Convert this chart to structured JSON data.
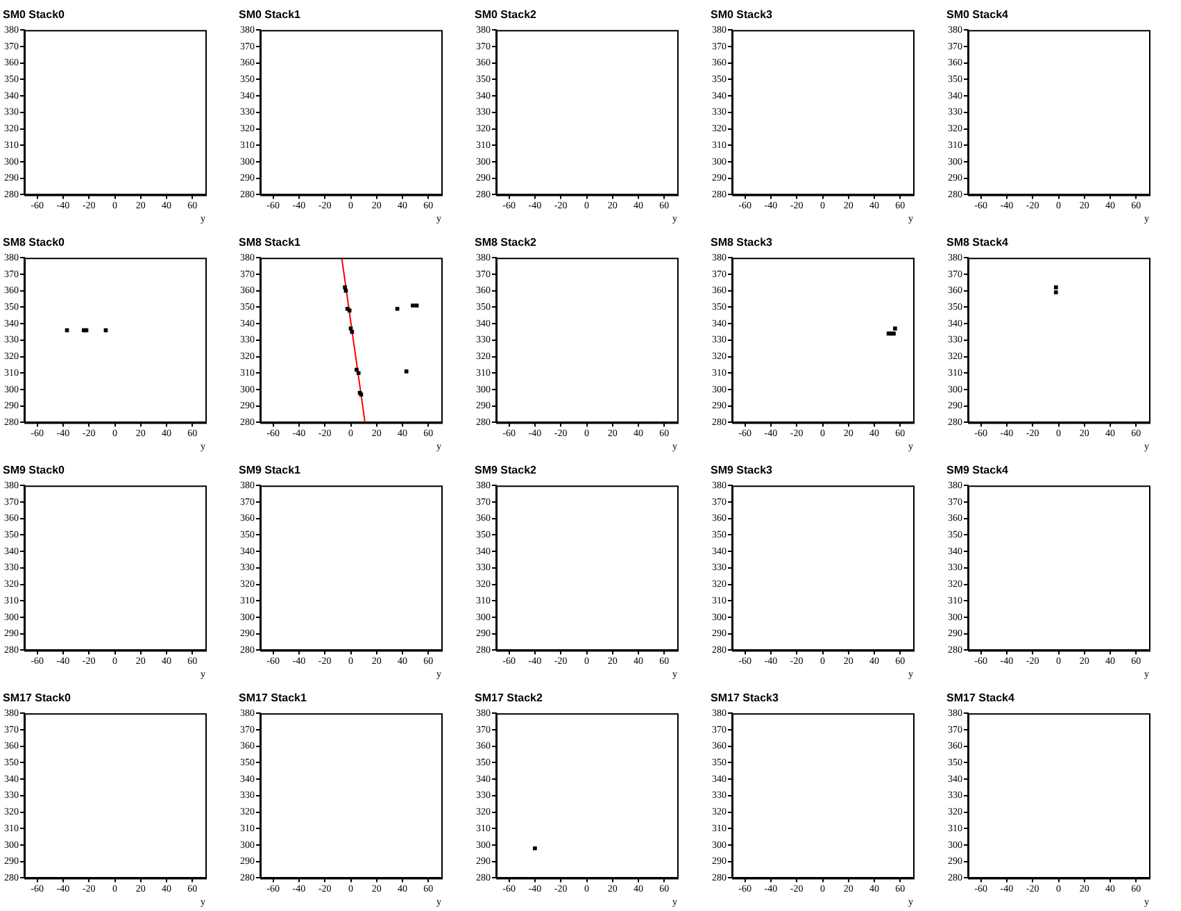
{
  "chart_data": [
    {
      "type": "scatter",
      "title": "SM0 Stack0",
      "xlabel": "y",
      "xlim": [
        -70,
        70
      ],
      "xticks": [
        -60,
        -40,
        -20,
        0,
        20,
        40,
        60
      ],
      "ylim": [
        280,
        380
      ],
      "yticks": [
        280,
        290,
        300,
        310,
        320,
        330,
        340,
        350,
        360,
        370,
        380
      ]
    },
    {
      "type": "scatter",
      "title": "SM0 Stack1",
      "xlabel": "y",
      "xlim": [
        -70,
        70
      ],
      "xticks": [
        -60,
        -40,
        -20,
        0,
        20,
        40,
        60
      ],
      "ylim": [
        280,
        380
      ],
      "yticks": [
        280,
        290,
        300,
        310,
        320,
        330,
        340,
        350,
        360,
        370,
        380
      ]
    },
    {
      "type": "scatter",
      "title": "SM0 Stack2",
      "xlabel": "y",
      "xlim": [
        -70,
        70
      ],
      "xticks": [
        -60,
        -40,
        -20,
        0,
        20,
        40,
        60
      ],
      "ylim": [
        280,
        380
      ],
      "yticks": [
        280,
        290,
        300,
        310,
        320,
        330,
        340,
        350,
        360,
        370,
        380
      ]
    },
    {
      "type": "scatter",
      "title": "SM0 Stack3",
      "xlabel": "y",
      "xlim": [
        -70,
        70
      ],
      "xticks": [
        -60,
        -40,
        -20,
        0,
        20,
        40,
        60
      ],
      "ylim": [
        280,
        380
      ],
      "yticks": [
        280,
        290,
        300,
        310,
        320,
        330,
        340,
        350,
        360,
        370,
        380
      ]
    },
    {
      "type": "scatter",
      "title": "SM0 Stack4",
      "xlabel": "y",
      "xlim": [
        -70,
        70
      ],
      "xticks": [
        -60,
        -40,
        -20,
        0,
        20,
        40,
        60
      ],
      "ylim": [
        280,
        380
      ],
      "yticks": [
        280,
        290,
        300,
        310,
        320,
        330,
        340,
        350,
        360,
        370,
        380
      ]
    },
    {
      "type": "scatter",
      "title": "SM8 Stack0",
      "xlabel": "y",
      "xlim": [
        -70,
        70
      ],
      "xticks": [
        -60,
        -40,
        -20,
        0,
        20,
        40,
        60
      ],
      "ylim": [
        280,
        380
      ],
      "yticks": [
        280,
        290,
        300,
        310,
        320,
        330,
        340,
        350,
        360,
        370,
        380
      ],
      "series": [
        {
          "color": "#000000",
          "marker": "square",
          "x": [
            -37,
            -24,
            -22,
            -7
          ],
          "values": [
            336,
            336,
            336,
            336
          ]
        }
      ]
    },
    {
      "type": "scatter",
      "title": "SM8 Stack1",
      "xlabel": "y",
      "xlim": [
        -70,
        70
      ],
      "xticks": [
        -60,
        -40,
        -20,
        0,
        20,
        40,
        60
      ],
      "ylim": [
        280,
        380
      ],
      "yticks": [
        280,
        290,
        300,
        310,
        320,
        330,
        340,
        350,
        360,
        370,
        380
      ],
      "series": [
        {
          "color": "#000000",
          "marker": "square",
          "x": [
            -4.5,
            -3.8,
            -2.6,
            -1,
            0,
            1,
            4.5,
            6,
            7,
            8,
            36,
            48,
            51,
            43
          ],
          "values": [
            362,
            360,
            349,
            348,
            337,
            335,
            312,
            310,
            298,
            297,
            349,
            351,
            351,
            311
          ]
        },
        {
          "type": "line",
          "color": "#ff0000",
          "x": [
            -7,
            11
          ],
          "values": [
            380,
            280
          ]
        }
      ]
    },
    {
      "type": "scatter",
      "title": "SM8 Stack2",
      "xlabel": "y",
      "xlim": [
        -70,
        70
      ],
      "xticks": [
        -60,
        -40,
        -20,
        0,
        20,
        40,
        60
      ],
      "ylim": [
        280,
        380
      ],
      "yticks": [
        280,
        290,
        300,
        310,
        320,
        330,
        340,
        350,
        360,
        370,
        380
      ]
    },
    {
      "type": "scatter",
      "title": "SM8 Stack3",
      "xlabel": "y",
      "xlim": [
        -70,
        70
      ],
      "xticks": [
        -60,
        -40,
        -20,
        0,
        20,
        40,
        60
      ],
      "ylim": [
        280,
        380
      ],
      "yticks": [
        280,
        290,
        300,
        310,
        320,
        330,
        340,
        350,
        360,
        370,
        380
      ],
      "series": [
        {
          "color": "#000000",
          "marker": "square",
          "x": [
            51,
            53,
            55,
            56
          ],
          "values": [
            334,
            334,
            334,
            337
          ]
        }
      ]
    },
    {
      "type": "scatter",
      "title": "SM8 Stack4",
      "xlabel": "y",
      "xlim": [
        -70,
        70
      ],
      "xticks": [
        -60,
        -40,
        -20,
        0,
        20,
        40,
        60
      ],
      "ylim": [
        280,
        380
      ],
      "yticks": [
        280,
        290,
        300,
        310,
        320,
        330,
        340,
        350,
        360,
        370,
        380
      ],
      "series": [
        {
          "color": "#000000",
          "marker": "square",
          "x": [
            -2,
            -2
          ],
          "values": [
            362,
            359
          ]
        }
      ]
    },
    {
      "type": "scatter",
      "title": "SM9 Stack0",
      "xlabel": "y",
      "xlim": [
        -70,
        70
      ],
      "xticks": [
        -60,
        -40,
        -20,
        0,
        20,
        40,
        60
      ],
      "ylim": [
        280,
        380
      ],
      "yticks": [
        280,
        290,
        300,
        310,
        320,
        330,
        340,
        350,
        360,
        370,
        380
      ]
    },
    {
      "type": "scatter",
      "title": "SM9 Stack1",
      "xlabel": "y",
      "xlim": [
        -70,
        70
      ],
      "xticks": [
        -60,
        -40,
        -20,
        0,
        20,
        40,
        60
      ],
      "ylim": [
        280,
        380
      ],
      "yticks": [
        280,
        290,
        300,
        310,
        320,
        330,
        340,
        350,
        360,
        370,
        380
      ]
    },
    {
      "type": "scatter",
      "title": "SM9 Stack2",
      "xlabel": "y",
      "xlim": [
        -70,
        70
      ],
      "xticks": [
        -60,
        -40,
        -20,
        0,
        20,
        40,
        60
      ],
      "ylim": [
        280,
        380
      ],
      "yticks": [
        280,
        290,
        300,
        310,
        320,
        330,
        340,
        350,
        360,
        370,
        380
      ]
    },
    {
      "type": "scatter",
      "title": "SM9 Stack3",
      "xlabel": "y",
      "xlim": [
        -70,
        70
      ],
      "xticks": [
        -60,
        -40,
        -20,
        0,
        20,
        40,
        60
      ],
      "ylim": [
        280,
        380
      ],
      "yticks": [
        280,
        290,
        300,
        310,
        320,
        330,
        340,
        350,
        360,
        370,
        380
      ]
    },
    {
      "type": "scatter",
      "title": "SM9 Stack4",
      "xlabel": "y",
      "xlim": [
        -70,
        70
      ],
      "xticks": [
        -60,
        -40,
        -20,
        0,
        20,
        40,
        60
      ],
      "ylim": [
        280,
        380
      ],
      "yticks": [
        280,
        290,
        300,
        310,
        320,
        330,
        340,
        350,
        360,
        370,
        380
      ]
    },
    {
      "type": "scatter",
      "title": "SM17 Stack0",
      "xlabel": "y",
      "xlim": [
        -70,
        70
      ],
      "xticks": [
        -60,
        -40,
        -20,
        0,
        20,
        40,
        60
      ],
      "ylim": [
        280,
        380
      ],
      "yticks": [
        280,
        290,
        300,
        310,
        320,
        330,
        340,
        350,
        360,
        370,
        380
      ]
    },
    {
      "type": "scatter",
      "title": "SM17 Stack1",
      "xlabel": "y",
      "xlim": [
        -70,
        70
      ],
      "xticks": [
        -60,
        -40,
        -20,
        0,
        20,
        40,
        60
      ],
      "ylim": [
        280,
        380
      ],
      "yticks": [
        280,
        290,
        300,
        310,
        320,
        330,
        340,
        350,
        360,
        370,
        380
      ]
    },
    {
      "type": "scatter",
      "title": "SM17 Stack2",
      "xlabel": "y",
      "xlim": [
        -70,
        70
      ],
      "xticks": [
        -60,
        -40,
        -20,
        0,
        20,
        40,
        60
      ],
      "ylim": [
        280,
        380
      ],
      "yticks": [
        280,
        290,
        300,
        310,
        320,
        330,
        340,
        350,
        360,
        370,
        380
      ],
      "series": [
        {
          "color": "#000000",
          "marker": "square",
          "x": [
            -40
          ],
          "values": [
            298
          ]
        }
      ]
    },
    {
      "type": "scatter",
      "title": "SM17 Stack3",
      "xlabel": "y",
      "xlim": [
        -70,
        70
      ],
      "xticks": [
        -60,
        -40,
        -20,
        0,
        20,
        40,
        60
      ],
      "ylim": [
        280,
        380
      ],
      "yticks": [
        280,
        290,
        300,
        310,
        320,
        330,
        340,
        350,
        360,
        370,
        380
      ]
    },
    {
      "type": "scatter",
      "title": "SM17 Stack4",
      "xlabel": "y",
      "xlim": [
        -70,
        70
      ],
      "xticks": [
        -60,
        -40,
        -20,
        0,
        20,
        40,
        60
      ],
      "ylim": [
        280,
        380
      ],
      "yticks": [
        280,
        290,
        300,
        310,
        320,
        330,
        340,
        350,
        360,
        370,
        380
      ]
    }
  ]
}
